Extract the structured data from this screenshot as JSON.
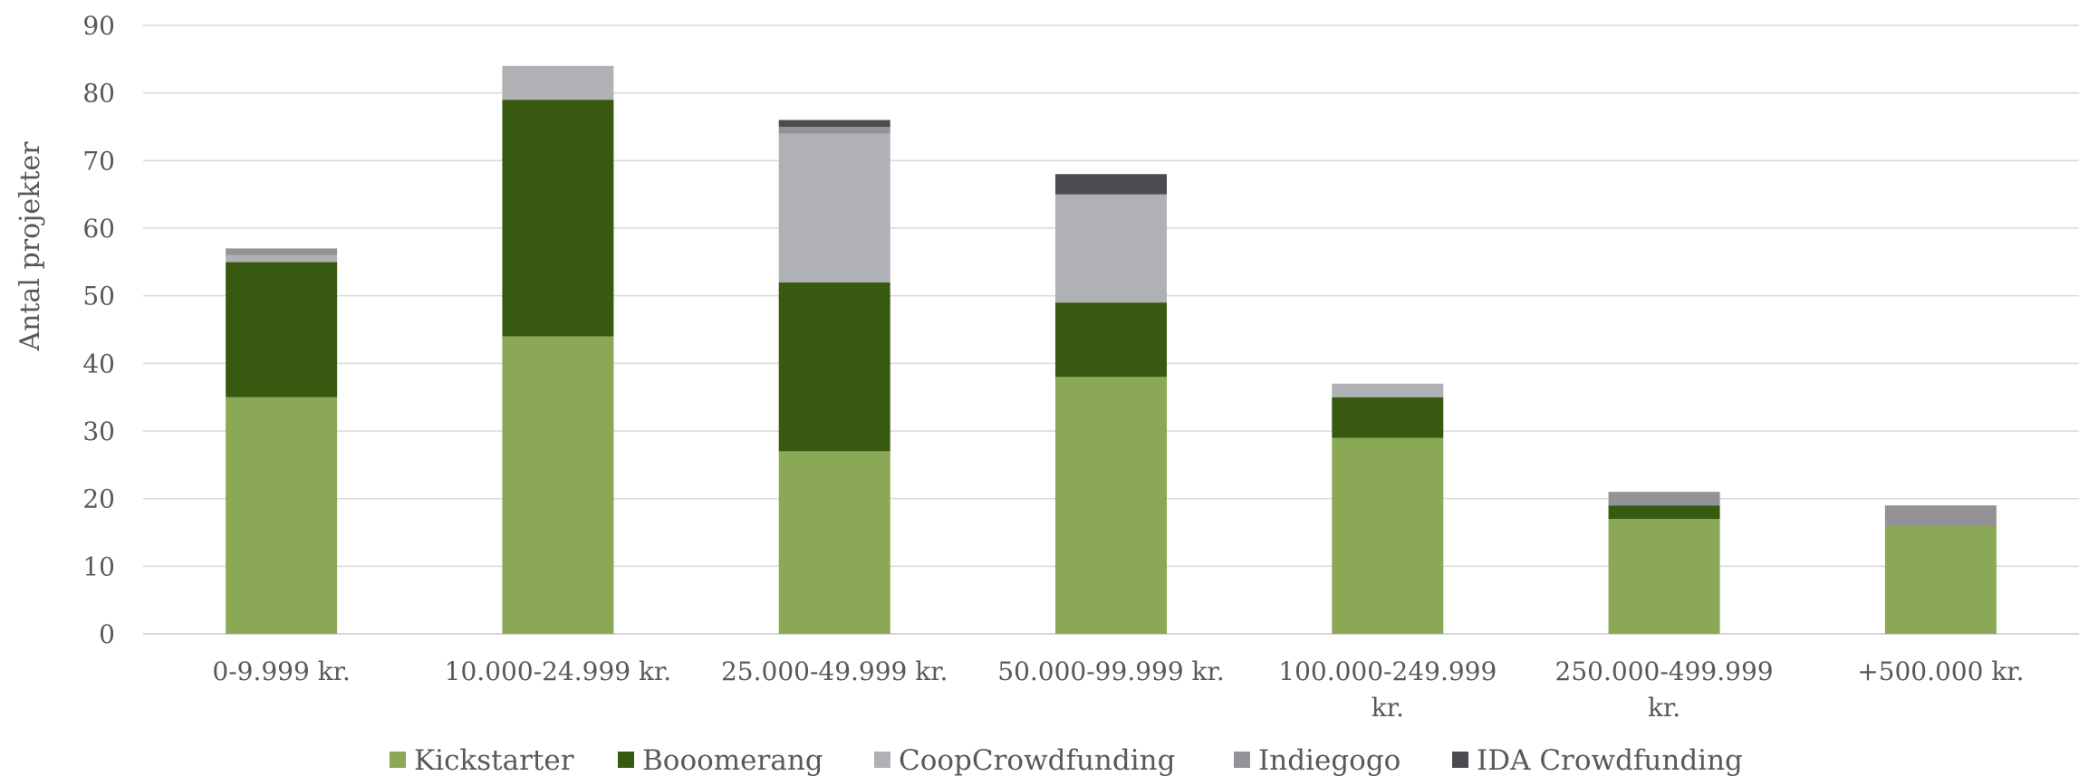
{
  "chart_data": {
    "type": "bar",
    "stacked": true,
    "title": "",
    "xlabel": "",
    "ylabel": "Antal projekter",
    "ylim": [
      0,
      90
    ],
    "yticks": [
      0,
      10,
      20,
      30,
      40,
      50,
      60,
      70,
      80,
      90
    ],
    "grid": true,
    "legend_position": "bottom",
    "categories": [
      [
        "0-9.999 kr."
      ],
      [
        "10.000-24.999 kr."
      ],
      [
        "25.000-49.999 kr."
      ],
      [
        "50.000-99.999 kr."
      ],
      [
        "100.000-249.999",
        "kr."
      ],
      [
        "250.000-499.999",
        "kr."
      ],
      [
        "+500.000 kr."
      ]
    ],
    "series": [
      {
        "name": "Kickstarter",
        "color": "#8aa856",
        "values": [
          35,
          44,
          27,
          38,
          29,
          17,
          16
        ]
      },
      {
        "name": "Booomerang",
        "color": "#375a10",
        "values": [
          20,
          35,
          25,
          11,
          6,
          2,
          0
        ]
      },
      {
        "name": "CoopCrowdfunding",
        "color": "#b0b1b4",
        "values": [
          1,
          5,
          22,
          16,
          2,
          0,
          0
        ]
      },
      {
        "name": "Indiegogo",
        "color": "#929297",
        "values": [
          1,
          0,
          1,
          0,
          0,
          2,
          3
        ]
      },
      {
        "name": "IDA Crowdfunding",
        "color": "#4b4c4f",
        "values": [
          0,
          0,
          1,
          3,
          0,
          0,
          0
        ]
      }
    ]
  }
}
